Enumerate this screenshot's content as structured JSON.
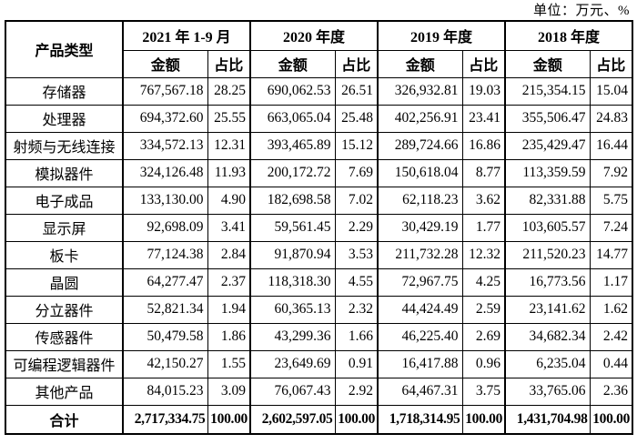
{
  "unit_label": "单位：万元、%",
  "table": {
    "product_type_header": "产品类型",
    "amount_header": "金额",
    "ratio_header": "占比",
    "periods": [
      "2021 年 1-9 月",
      "2020 年度",
      "2019 年度",
      "2018 年度"
    ],
    "rows": [
      {
        "label": "存储器",
        "values": [
          "767,567.18",
          "28.25",
          "690,062.53",
          "26.51",
          "326,932.81",
          "19.03",
          "215,354.15",
          "15.04"
        ]
      },
      {
        "label": "处理器",
        "values": [
          "694,372.60",
          "25.55",
          "663,065.04",
          "25.48",
          "402,256.91",
          "23.41",
          "355,506.47",
          "24.83"
        ]
      },
      {
        "label": "射频与无线连接",
        "values": [
          "334,572.13",
          "12.31",
          "393,465.89",
          "15.12",
          "289,724.66",
          "16.86",
          "235,429.47",
          "16.44"
        ]
      },
      {
        "label": "模拟器件",
        "values": [
          "324,126.48",
          "11.93",
          "200,172.72",
          "7.69",
          "150,618.04",
          "8.77",
          "113,359.59",
          "7.92"
        ]
      },
      {
        "label": "电子成品",
        "values": [
          "133,130.00",
          "4.90",
          "182,698.58",
          "7.02",
          "62,118.23",
          "3.62",
          "82,331.88",
          "5.75"
        ]
      },
      {
        "label": "显示屏",
        "values": [
          "92,698.09",
          "3.41",
          "59,561.45",
          "2.29",
          "30,429.19",
          "1.77",
          "103,605.57",
          "7.24"
        ]
      },
      {
        "label": "板卡",
        "values": [
          "77,124.38",
          "2.84",
          "91,870.94",
          "3.53",
          "211,732.28",
          "12.32",
          "211,520.23",
          "14.77"
        ]
      },
      {
        "label": "晶圆",
        "values": [
          "64,277.47",
          "2.37",
          "118,318.30",
          "4.55",
          "72,967.75",
          "4.25",
          "16,773.56",
          "1.17"
        ]
      },
      {
        "label": "分立器件",
        "values": [
          "52,821.34",
          "1.94",
          "60,365.13",
          "2.32",
          "44,424.49",
          "2.59",
          "23,141.62",
          "1.62"
        ]
      },
      {
        "label": "传感器件",
        "values": [
          "50,479.58",
          "1.86",
          "43,299.36",
          "1.66",
          "46,225.40",
          "2.69",
          "34,682.34",
          "2.42"
        ]
      },
      {
        "label": "可编程逻辑器件",
        "values": [
          "42,150.27",
          "1.55",
          "23,649.69",
          "0.91",
          "16,417.88",
          "0.96",
          "6,235.04",
          "0.44"
        ]
      },
      {
        "label": "其他产品",
        "values": [
          "84,015.23",
          "3.09",
          "76,067.43",
          "2.92",
          "64,467.31",
          "3.75",
          "33,765.06",
          "2.36"
        ]
      }
    ],
    "total_row": {
      "label": "合计",
      "values": [
        "2,717,334.75",
        "100.00",
        "2,602,597.05",
        "100.00",
        "1,718,314.95",
        "100.00",
        "1,431,704.98",
        "100.00"
      ]
    }
  }
}
